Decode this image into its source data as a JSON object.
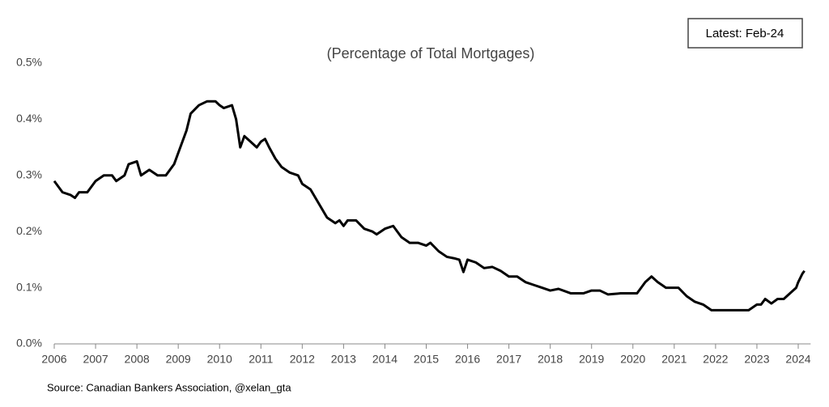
{
  "chart_data": {
    "type": "line",
    "subtitle": "(Percentage of Total Mortgages)",
    "annotation": "Latest:  Feb-24",
    "source": "Source: Canadian Bankers Association, @xelan_gta",
    "xlim": [
      2006,
      2024.3
    ],
    "xticks": [
      2006,
      2007,
      2008,
      2009,
      2010,
      2011,
      2012,
      2013,
      2014,
      2015,
      2016,
      2017,
      2018,
      2019,
      2020,
      2021,
      2022,
      2023,
      2024
    ],
    "ylim": [
      0,
      0.5
    ],
    "yticks": [
      {
        "value": 0,
        "label": "0.0%"
      },
      {
        "value": 0.1,
        "label": "0.1%"
      },
      {
        "value": 0.2,
        "label": "0.2%"
      },
      {
        "value": 0.3,
        "label": "0.3%"
      },
      {
        "value": 0.4,
        "label": "0.4%"
      },
      {
        "value": 0.5,
        "label": "0.5%"
      }
    ],
    "grid": false,
    "x": [
      2006.0,
      2006.2,
      2006.4,
      2006.5,
      2006.6,
      2006.8,
      2007.0,
      2007.2,
      2007.4,
      2007.5,
      2007.7,
      2007.8,
      2008.0,
      2008.1,
      2008.3,
      2008.5,
      2008.7,
      2008.9,
      2009.0,
      2009.2,
      2009.3,
      2009.5,
      2009.7,
      2009.9,
      2010.0,
      2010.1,
      2010.3,
      2010.4,
      2010.5,
      2010.6,
      2010.75,
      2010.9,
      2011.0,
      2011.1,
      2011.2,
      2011.35,
      2011.5,
      2011.7,
      2011.9,
      2012.0,
      2012.2,
      2012.4,
      2012.6,
      2012.8,
      2012.9,
      2013.0,
      2013.1,
      2013.3,
      2013.5,
      2013.7,
      2013.8,
      2014.0,
      2014.2,
      2014.4,
      2014.6,
      2014.8,
      2015.0,
      2015.1,
      2015.3,
      2015.5,
      2015.7,
      2015.8,
      2015.9,
      2016.0,
      2016.2,
      2016.4,
      2016.6,
      2016.8,
      2017.0,
      2017.2,
      2017.4,
      2017.6,
      2017.8,
      2018.0,
      2018.2,
      2018.5,
      2018.8,
      2019.0,
      2019.2,
      2019.4,
      2019.7,
      2019.9,
      2020.1,
      2020.3,
      2020.45,
      2020.6,
      2020.8,
      2021.1,
      2021.3,
      2021.5,
      2021.7,
      2021.9,
      2022.3,
      2022.8,
      2023.0,
      2023.1,
      2023.2,
      2023.35,
      2023.5,
      2023.65,
      2023.8,
      2023.95,
      2024.0,
      2024.1,
      2024.15
    ],
    "series": [
      {
        "color": "#000000",
        "values": [
          0.29,
          0.27,
          0.265,
          0.26,
          0.27,
          0.27,
          0.29,
          0.3,
          0.3,
          0.29,
          0.3,
          0.32,
          0.325,
          0.3,
          0.31,
          0.3,
          0.3,
          0.32,
          0.34,
          0.38,
          0.41,
          0.425,
          0.432,
          0.432,
          0.425,
          0.42,
          0.425,
          0.4,
          0.35,
          0.37,
          0.36,
          0.35,
          0.36,
          0.365,
          0.35,
          0.33,
          0.315,
          0.305,
          0.3,
          0.285,
          0.275,
          0.25,
          0.225,
          0.215,
          0.22,
          0.21,
          0.22,
          0.22,
          0.205,
          0.2,
          0.195,
          0.205,
          0.21,
          0.19,
          0.18,
          0.18,
          0.175,
          0.18,
          0.165,
          0.155,
          0.152,
          0.15,
          0.128,
          0.15,
          0.145,
          0.135,
          0.137,
          0.13,
          0.12,
          0.12,
          0.11,
          0.105,
          0.1,
          0.095,
          0.098,
          0.09,
          0.09,
          0.095,
          0.095,
          0.088,
          0.09,
          0.09,
          0.09,
          0.11,
          0.12,
          0.11,
          0.1,
          0.1,
          0.085,
          0.075,
          0.07,
          0.06,
          0.06,
          0.06,
          0.07,
          0.07,
          0.08,
          0.072,
          0.08,
          0.08,
          0.09,
          0.1,
          0.11,
          0.125,
          0.13
        ]
      }
    ]
  }
}
